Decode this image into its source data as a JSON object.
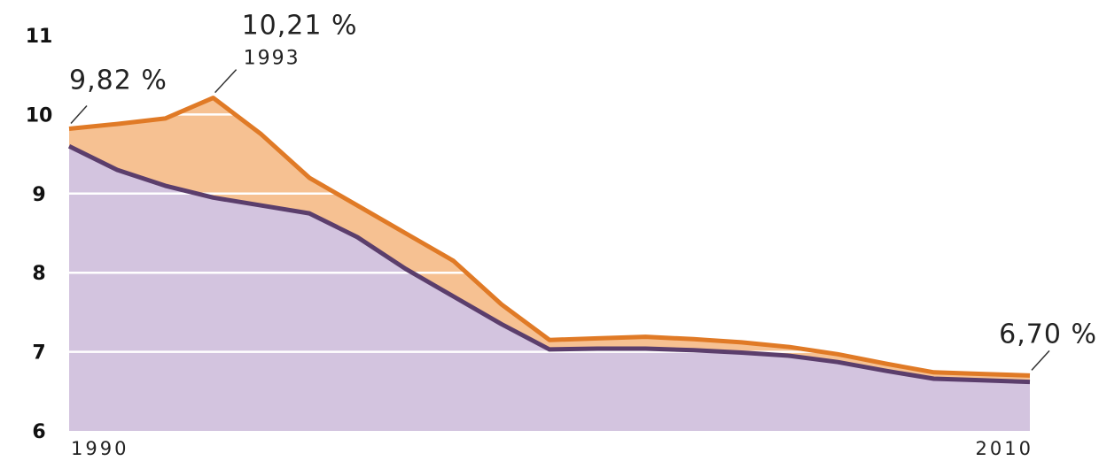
{
  "colors": {
    "upper_fill": "#F6C192",
    "upper_line": "#E07A26",
    "lower_fill": "#D3C4DF",
    "lower_line": "#5B3E6C",
    "grid": "#ffffff"
  },
  "chart_data": {
    "type": "area",
    "title": "",
    "xlabel": "",
    "ylabel": "",
    "ylim": [
      6,
      11
    ],
    "xlim": [
      1990,
      2010
    ],
    "grid": true,
    "y_ticks": [
      "6",
      "7",
      "8",
      "9",
      "10",
      "11"
    ],
    "x_tick_labels": [
      {
        "x": 1990,
        "label": "1990"
      },
      {
        "x": 2010,
        "label": "2010"
      }
    ],
    "series": [
      {
        "x": [
          1990,
          1991,
          1992,
          1993,
          1994,
          1995,
          1996,
          1997,
          1998,
          1999,
          2000,
          2001,
          2002,
          2003,
          2004,
          2005,
          2006,
          2007,
          2008,
          2009,
          2010
        ],
        "values": [
          9.82,
          9.88,
          9.95,
          10.21,
          9.75,
          9.2,
          8.85,
          8.5,
          8.15,
          7.6,
          7.15,
          7.17,
          7.19,
          7.16,
          7.12,
          7.06,
          6.97,
          6.85,
          6.74,
          6.72,
          6.7
        ]
      },
      {
        "x": [
          1990,
          1991,
          1992,
          1993,
          1994,
          1995,
          1996,
          1997,
          1998,
          1999,
          2000,
          2001,
          2002,
          2003,
          2004,
          2005,
          2006,
          2007,
          2008,
          2009,
          2010
        ],
        "values": [
          9.6,
          9.3,
          9.1,
          8.95,
          8.85,
          8.75,
          8.45,
          8.05,
          7.7,
          7.35,
          7.03,
          7.04,
          7.04,
          7.02,
          6.99,
          6.95,
          6.87,
          6.76,
          6.66,
          6.64,
          6.62
        ]
      }
    ],
    "annotations": [
      {
        "text": "9,82 %",
        "x": 1990,
        "y": 9.82
      },
      {
        "text": "10,21 %",
        "sub": "1993",
        "x": 1993,
        "y": 10.21
      },
      {
        "text": "6,70 %",
        "x": 2010,
        "y": 6.7
      }
    ]
  }
}
